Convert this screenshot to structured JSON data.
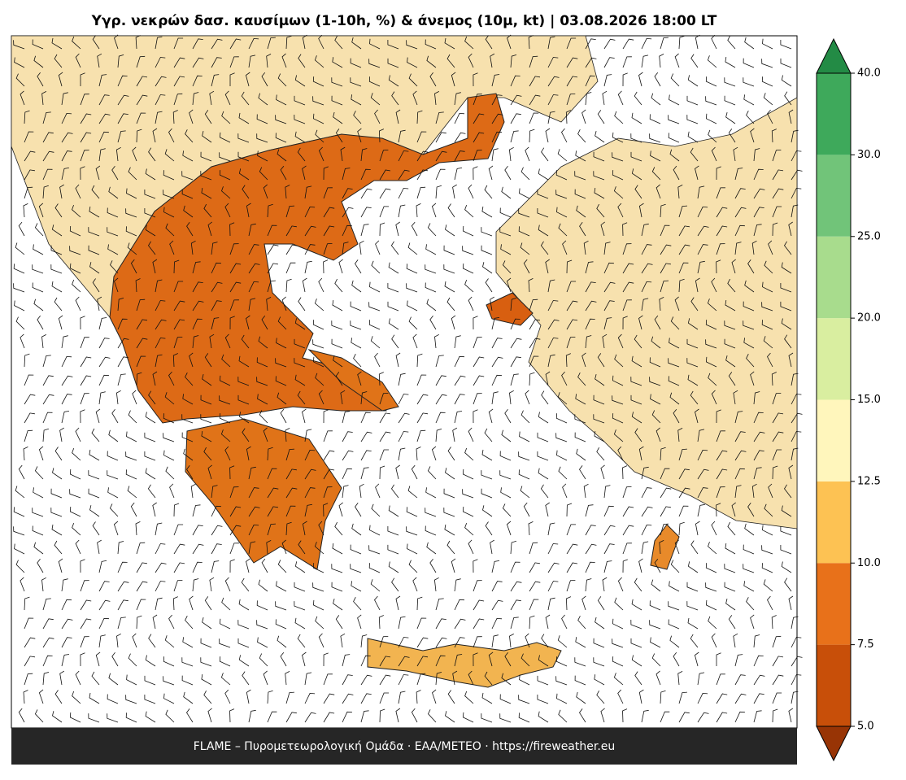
{
  "title": "Υγρ. νεκρών δασ. καυσίμων (1-10h, %) & άνεμος (10μ, kt)  |  03.08.2026 18:00 LT",
  "footer": "FLAME – Πυρομετεωρολογική Ομάδα · ΕΑΑ/METEO · https://fireweather.eu",
  "colorbar": {
    "ticks": [
      {
        "value": 5,
        "label": "5.0"
      },
      7.5,
      {
        "value": 10,
        "label": "10.0"
      },
      12.5,
      {
        "value": 15,
        "label": "15.0"
      },
      {
        "value": 20,
        "label": "20.0"
      },
      {
        "value": 25,
        "label": "25.0"
      },
      {
        "value": 30,
        "label": "30.0"
      },
      {
        "value": 40,
        "label": "40.0"
      }
    ],
    "colors": [
      "#c84f09",
      "#e8711a",
      "#fdc253",
      "#fff6bc",
      "#d9eea0",
      "#a8dc8d",
      "#71c479",
      "#3ea95b"
    ],
    "under_color": "#983405",
    "over_color": "#238b45"
  }
}
